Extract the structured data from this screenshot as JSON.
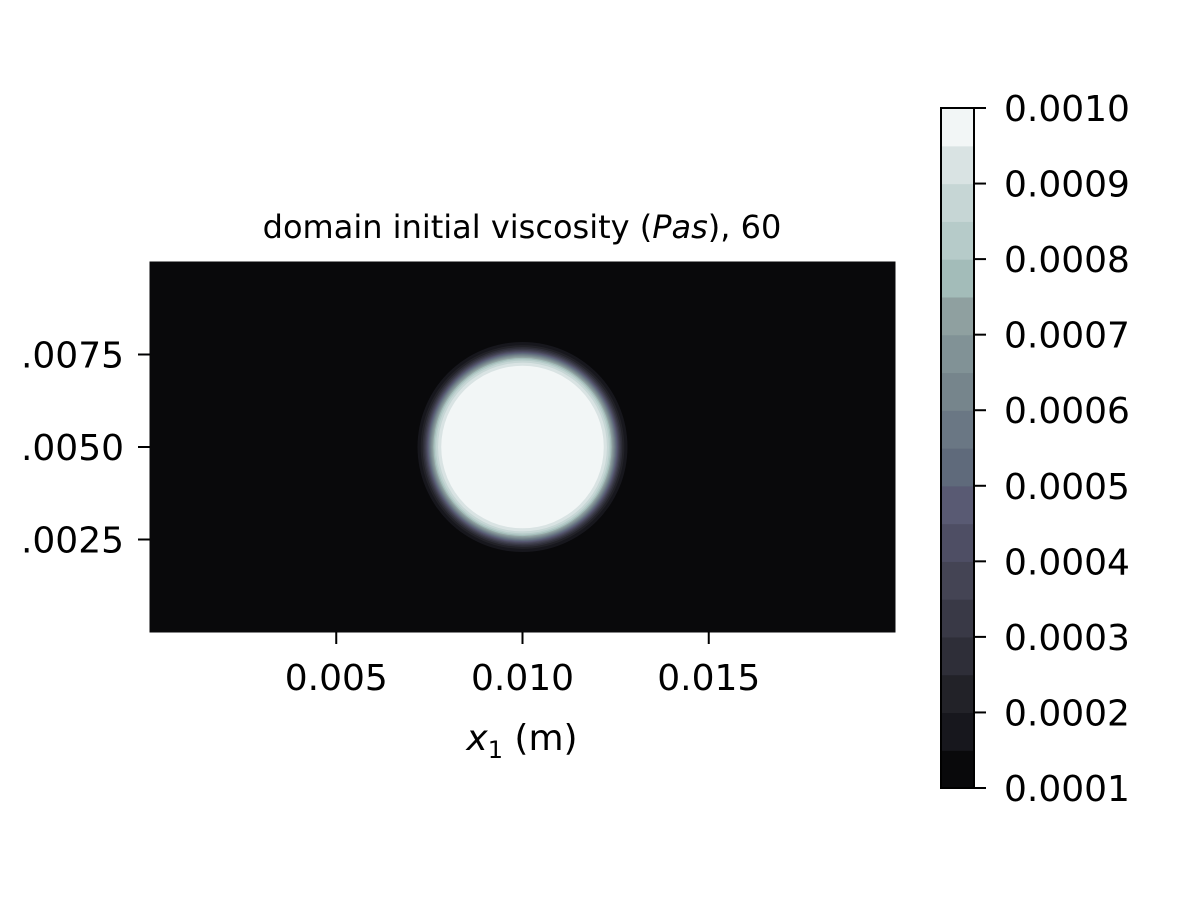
{
  "chart_data": {
    "type": "heatmap",
    "title": "domain initial viscosity (Pas), 60",
    "title_parts": {
      "before": "domain initial viscosity (",
      "italic": "Pas",
      "after": "), 60"
    },
    "xlabel": "x1 (m)",
    "xlabel_parts": {
      "symbol": "x",
      "subscript": "1",
      "unit": " (m)"
    },
    "ylabel": "",
    "xlim": [
      0.0,
      0.02
    ],
    "ylim": [
      0.0,
      0.01
    ],
    "x_ticks": [
      0.005,
      0.01,
      0.015
    ],
    "x_tick_labels": [
      "0.005",
      "0.010",
      "0.015"
    ],
    "y_ticks": [
      0.0025,
      0.005,
      0.0075
    ],
    "y_tick_labels": [
      ".0025",
      ".0050",
      ".0075"
    ],
    "field": {
      "description": "circular high-viscosity drop in low-viscosity domain",
      "center": [
        0.01,
        0.005
      ],
      "radius": 0.0025,
      "inside_value": 0.001,
      "outside_value": 0.0001
    },
    "colorbar": {
      "colormap": "bone",
      "min": 0.0001,
      "max": 0.001,
      "levels": 18,
      "ticks": [
        0.0001,
        0.0002,
        0.0003,
        0.0004,
        0.0005,
        0.0006,
        0.0007,
        0.0008,
        0.0009,
        0.001
      ],
      "tick_labels": [
        "0.0001",
        "0.0002",
        "0.0003",
        "0.0004",
        "0.0005",
        "0.0006",
        "0.0007",
        "0.0008",
        "0.0009",
        "0.0010"
      ],
      "colors": [
        "#09090b",
        "#17171d",
        "#222228",
        "#2e2e38",
        "#393946",
        "#444454",
        "#4e4e64",
        "#595a73",
        "#5f6a7b",
        "#6a7784",
        "#76858c",
        "#819296",
        "#8fa0a0",
        "#a3bcb9",
        "#b6cbc9",
        "#c6d6d5",
        "#d9e3e3",
        "#f2f6f6"
      ]
    }
  }
}
